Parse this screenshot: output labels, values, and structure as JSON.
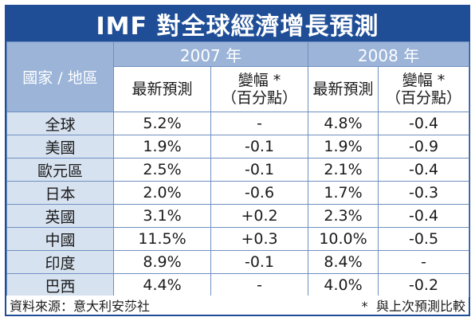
{
  "title": "IMF 對全球經濟增長預測",
  "chart_data": {
    "type": "table",
    "title": "IMF 對全球經濟增長預測",
    "row_header": "國家 / 地區",
    "years": [
      "2007 年",
      "2008 年"
    ],
    "subheaders": {
      "forecast": "最新預測",
      "change_line1": "變幅 *",
      "change_line2": "（百分點）"
    },
    "rows": [
      {
        "country": "全球",
        "f2007": "5.2%",
        "c2007": "-",
        "f2008": "4.8%",
        "c2008": "-0.4"
      },
      {
        "country": "美國",
        "f2007": "1.9%",
        "c2007": "-0.1",
        "f2008": "1.9%",
        "c2008": "-0.9"
      },
      {
        "country": "歐元區",
        "f2007": "2.5%",
        "c2007": "-0.1",
        "f2008": "2.1%",
        "c2008": "-0.4"
      },
      {
        "country": "日本",
        "f2007": "2.0%",
        "c2007": "-0.6",
        "f2008": "1.7%",
        "c2008": "-0.3"
      },
      {
        "country": "英國",
        "f2007": "3.1%",
        "c2007": "+0.2",
        "f2008": "2.3%",
        "c2008": "-0.4"
      },
      {
        "country": "中國",
        "f2007": "11.5%",
        "c2007": "+0.3",
        "f2008": "10.0%",
        "c2008": "-0.5"
      },
      {
        "country": "印度",
        "f2007": "8.9%",
        "c2007": "-0.1",
        "f2008": "8.4%",
        "c2008": "-"
      },
      {
        "country": "巴西",
        "f2007": "4.4%",
        "c2007": "-",
        "f2008": "4.0%",
        "c2008": "-0.2"
      }
    ]
  },
  "footer": {
    "source": "資料來源：意大利安莎社",
    "note": "* 與上次預測比較"
  },
  "colors": {
    "frame": "#1f4e96",
    "header_fill": "#9bb4d8",
    "country_fill": "#d7e2f0"
  }
}
